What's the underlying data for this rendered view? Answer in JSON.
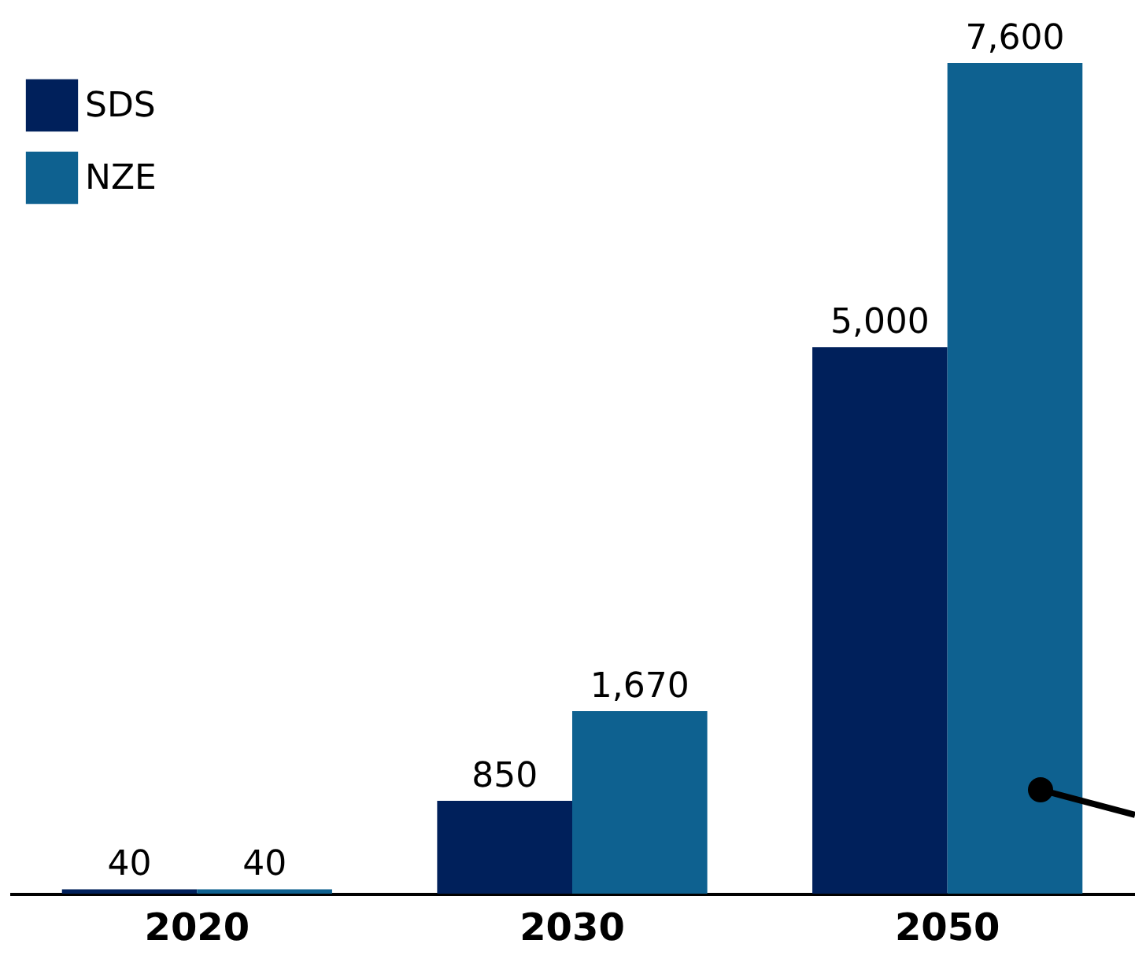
{
  "chart_data": {
    "type": "bar",
    "categories": [
      "2020",
      "2030",
      "2050"
    ],
    "series": [
      {
        "name": "SDS",
        "color": "#00205b",
        "values": [
          40,
          850,
          5000
        ],
        "value_labels": [
          "40",
          "850",
          "5,000"
        ]
      },
      {
        "name": "NZE",
        "color": "#0e6190",
        "values": [
          40,
          1670,
          7600
        ],
        "value_labels": [
          "40",
          "1,670",
          "7,600"
        ]
      }
    ],
    "legend": "top left"
  }
}
